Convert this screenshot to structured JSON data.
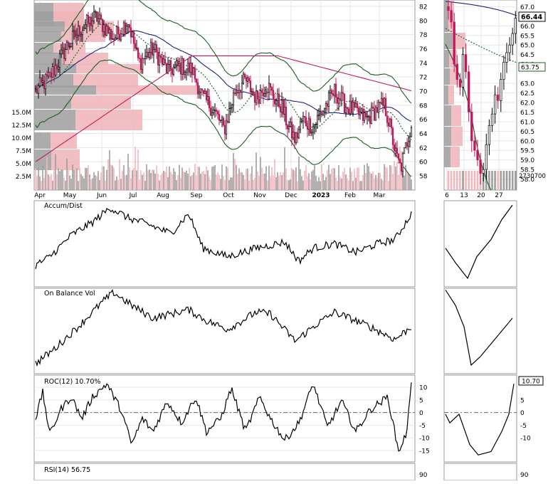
{
  "chart_data": [
    {
      "type": "candlestick",
      "panel": "price-main",
      "series": [
        {
          "name": "",
          "role": "candles"
        },
        {
          "name": "",
          "role": "moving-average",
          "color": "#1a237e"
        },
        {
          "name": "",
          "role": "moving-average",
          "color": "#c2185b"
        },
        {
          "name": "",
          "role": "bollinger-band",
          "color": "#1b5e20"
        },
        {
          "name": "",
          "role": "moving-average-dotted",
          "color": "#1b5e20"
        }
      ],
      "ylim": [
        57,
        82.5
      ],
      "y_ticks": [
        "82",
        "80",
        "78",
        "76",
        "74",
        "72",
        "70",
        "68",
        "66",
        "64",
        "62",
        "60",
        "58"
      ],
      "x_ticks": [
        "Apr",
        "May",
        "Jun",
        "Jul",
        "Aug",
        "Sep",
        "Oct",
        "Nov",
        "Dec",
        "2023",
        "Feb",
        "Mar"
      ],
      "volume_ticks": [
        "15.0M",
        "12.5M",
        "10.0M",
        "7.5M",
        "5.0M",
        "2.5M"
      ],
      "volume_ylim": [
        0,
        16
      ]
    },
    {
      "type": "candlestick",
      "panel": "price-zoom",
      "ylim": [
        57.8,
        67.2
      ],
      "y_ticks": [
        "67.0",
        "66.0",
        "65.5",
        "65.0",
        "64.5",
        "64.0",
        "63.0",
        "62.5",
        "62.0",
        "61.5",
        "61.0",
        "60.5",
        "60.0",
        "59.5",
        "59.0",
        "58.5",
        "58.0"
      ],
      "x_ticks": [
        "6",
        "13",
        "20",
        "27"
      ],
      "last_price": "66.44",
      "ma_value": "63.75",
      "volume_label": "2730700"
    },
    {
      "type": "line",
      "panel": "accum-dist",
      "title": "Accum/Dist"
    },
    {
      "type": "line",
      "panel": "on-balance-volume",
      "title": "On Balance Vol"
    },
    {
      "type": "line",
      "panel": "roc",
      "title": "ROC(12) 10.70%",
      "ylim": [
        -17,
        12
      ],
      "y_ticks": [
        10,
        5,
        0,
        -5,
        -10,
        -15
      ],
      "zoom_y_ticks": [
        5,
        0,
        -5,
        -10
      ],
      "last_value": "10.70"
    },
    {
      "type": "line",
      "panel": "rsi",
      "title": "RSI(14) 56.75",
      "y_ticks": [
        "90"
      ]
    }
  ],
  "colors": {
    "up": "#000000",
    "down": "#c2185b",
    "ma_blue": "#1a237e",
    "ma_red": "#c2185b",
    "bb_green": "#1b5e20",
    "vol_gray": "#9e9e9e",
    "vol_pink": "#f3b6bc",
    "profile_gray": "#9e9e9e",
    "profile_pink": "#eeb4b8",
    "grid": "#e6e6e6"
  }
}
